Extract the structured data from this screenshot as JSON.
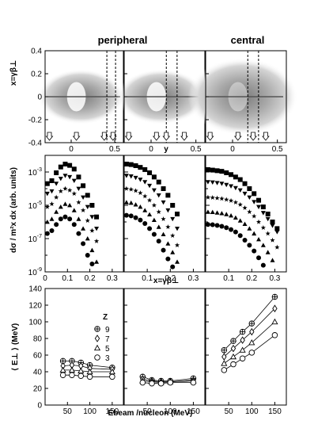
{
  "chart_data": [
    {
      "type": "heatmap",
      "column_titles": [
        "peripheral",
        "central"
      ],
      "ylabel": "x=γβ⊥",
      "xlabel": "y",
      "xlim": [
        -0.3,
        0.6
      ],
      "ylim": [
        -0.4,
        0.4
      ],
      "x_ticks": [
        "0",
        "0.5"
      ],
      "y_ticks": [
        "0.4",
        "0.2",
        "0",
        "-0.2",
        "-0.4"
      ],
      "panels": [
        {
          "dashed_lines_y": [
            0.41,
            0.51
          ],
          "arrows_y": [
            -0.25,
            0.06,
            0.38,
            0.48
          ]
        },
        {
          "dashed_lines_y": [
            0.17,
            0.29
          ],
          "arrows_y": [
            -0.25,
            0.06,
            0.17,
            0.37
          ]
        },
        {
          "dashed_lines_y": [
            0.17,
            0.29
          ],
          "arrows_y": [
            -0.25,
            0.06,
            0.23,
            0.37
          ]
        }
      ]
    },
    {
      "type": "scatter",
      "ylabel": "dσ / m²x dx  (arb. units)",
      "xlabel": "x=γβ⊥",
      "y_scale": "log",
      "xlim": [
        0,
        0.35
      ],
      "ylim": [
        1e-09,
        0.01
      ],
      "x_ticks": [
        "0",
        "0.1",
        "0.2",
        "0.3"
      ],
      "y_ticks": [
        "10^-3",
        "10^-5",
        "10^-7",
        "10^-9"
      ],
      "x": [
        0.01,
        0.03,
        0.05,
        0.07,
        0.09,
        0.11,
        0.13,
        0.15,
        0.17,
        0.19,
        0.21,
        0.23,
        0.25,
        0.27,
        0.29,
        0.31,
        0.33
      ],
      "panels": [
        {
          "series": [
            {
              "marker": "square",
              "values": [
                0.0002,
                0.0003,
                0.0009,
                0.002,
                0.003,
                0.0025,
                0.0015,
                0.0005,
                0.00015,
                4e-05,
                1e-05,
                2e-06,
                null,
                null,
                null,
                null,
                null
              ]
            },
            {
              "marker": "triangle-down",
              "values": [
                5e-05,
                7e-05,
                0.0002,
                0.0004,
                0.0006,
                0.0005,
                0.0003,
                0.0001,
                3e-05,
                8e-06,
                2e-06,
                4e-07,
                null,
                null,
                null,
                null,
                null
              ]
            },
            {
              "marker": "star",
              "values": [
                8e-06,
                1.2e-05,
                3e-05,
                7e-05,
                0.0001,
                8e-05,
                5e-05,
                1.5e-05,
                5e-06,
                1.2e-06,
                3e-07,
                7e-08,
                null,
                null,
                null,
                null,
                null
              ]
            },
            {
              "marker": "triangle-up",
              "values": [
                1e-06,
                1.5e-06,
                4e-06,
                8e-06,
                1.2e-05,
                1e-05,
                5e-06,
                1.5e-06,
                4e-07,
                1e-07,
                2e-08,
                4e-09,
                null,
                null,
                null,
                null,
                null
              ]
            },
            {
              "marker": "circle",
              "values": [
                2e-07,
                3e-07,
                7e-07,
                1.5e-06,
                2e-06,
                1.5e-06,
                7e-07,
                2e-07,
                5e-08,
                1e-08,
                3e-09,
                1e-09,
                null,
                null,
                null,
                null,
                null
              ]
            }
          ]
        },
        {
          "series": [
            {
              "marker": "square",
              "values": [
                0.003,
                0.0028,
                0.0024,
                0.0019,
                0.0014,
                0.0009,
                0.0005,
                0.00025,
                0.0001,
                4e-05,
                1e-05,
                3e-06,
                null,
                null,
                null,
                null,
                null
              ]
            },
            {
              "marker": "triangle-down",
              "values": [
                0.0006,
                0.00055,
                0.00045,
                0.00035,
                0.00025,
                0.00015,
                8e-05,
                4e-05,
                1.5e-05,
                5e-06,
                1.5e-06,
                4e-07,
                null,
                null,
                null,
                null,
                null
              ]
            },
            {
              "marker": "star",
              "values": [
                0.0001,
                9e-05,
                7.5e-05,
                5.5e-05,
                3.5e-05,
                2e-05,
                1e-05,
                4e-06,
                1.5e-06,
                5e-07,
                1.5e-07,
                4e-08,
                null,
                null,
                null,
                null,
                null
              ]
            },
            {
              "marker": "triangle-up",
              "values": [
                1.5e-05,
                1.4e-05,
                1.1e-05,
                8e-06,
                5e-06,
                2.8e-06,
                1.3e-06,
                5e-07,
                1.8e-07,
                5e-08,
                1.5e-08,
                4e-09,
                null,
                null,
                null,
                null,
                null
              ]
            },
            {
              "marker": "circle",
              "values": [
                2.5e-06,
                2.3e-06,
                1.8e-06,
                1.3e-06,
                8e-07,
                4e-07,
                1.8e-07,
                7e-08,
                2e-08,
                6e-09,
                2e-09,
                8e-10,
                null,
                null,
                null,
                null,
                null
              ]
            }
          ]
        },
        {
          "series": [
            {
              "marker": "square",
              "values": [
                0.0014,
                0.0013,
                0.0012,
                0.0011,
                0.0009,
                0.0007,
                0.0005,
                0.00035,
                0.0002,
                0.0001,
                5e-05,
                2e-05,
                8e-06,
                3e-06,
                1e-06,
                4e-07,
                null
              ]
            },
            {
              "marker": "triangle-down",
              "values": [
                0.00025,
                0.00024,
                0.00022,
                0.0002,
                0.00017,
                0.00014,
                0.00011,
                8e-05,
                5e-05,
                3e-05,
                1.6e-05,
                8e-06,
                3.5e-06,
                1.5e-06,
                6e-07,
                2.5e-07,
                null
              ]
            },
            {
              "marker": "star",
              "values": [
                3e-05,
                2.9e-05,
                2.7e-05,
                2.5e-05,
                2.2e-05,
                1.9e-05,
                1.5e-05,
                1.1e-05,
                7e-06,
                4e-06,
                2.2e-06,
                1e-06,
                4.5e-07,
                2e-07,
                8e-08,
                3e-08,
                null
              ]
            },
            {
              "marker": "triangle-up",
              "values": [
                4e-06,
                3.9e-06,
                3.6e-06,
                3.3e-06,
                2.9e-06,
                2.4e-06,
                1.8e-06,
                1.2e-06,
                7.5e-07,
                4e-07,
                2e-07,
                9e-08,
                4e-08,
                1.5e-08,
                5e-09,
                null,
                null
              ]
            },
            {
              "marker": "circle",
              "values": [
                7e-07,
                6.8e-07,
                6.2e-07,
                5.5e-07,
                4.5e-07,
                3.5e-07,
                2.5e-07,
                1.5e-07,
                8e-08,
                4e-08,
                1.8e-08,
                7e-09,
                2.5e-09,
                1e-09,
                null,
                null,
                null
              ]
            }
          ]
        }
      ]
    },
    {
      "type": "line",
      "ylabel": "⟨ E⊥ ⟩  (MeV)",
      "xlabel": "Ebeam /nucleon  (MeV)",
      "xlim": [
        0,
        175
      ],
      "ylim": [
        0,
        140
      ],
      "x_ticks": [
        "50",
        "100",
        "150"
      ],
      "y_ticks": [
        "0",
        "20",
        "40",
        "60",
        "80",
        "100",
        "120",
        "140"
      ],
      "legend_title": "Z",
      "legend": [
        "9",
        "7",
        "5",
        "3"
      ],
      "markers": [
        "cross",
        "diamond",
        "triangle-up",
        "circle"
      ],
      "x": [
        40,
        60,
        80,
        100,
        150
      ],
      "panels": [
        {
          "series": [
            {
              "name": "9",
              "values": [
                53,
                53,
                51,
                48,
                45
              ]
            },
            {
              "name": "7",
              "values": [
                47,
                48,
                47,
                44,
                43
              ]
            },
            {
              "name": "5",
              "values": [
                42,
                42,
                41,
                40,
                40
              ]
            },
            {
              "name": "3",
              "values": [
                36,
                36,
                35,
                34,
                34
              ]
            }
          ]
        },
        {
          "series": [
            {
              "name": "9",
              "values": [
                34,
                30,
                29,
                29,
                32
              ]
            },
            {
              "name": "7",
              "values": [
                31,
                29,
                28,
                28,
                30
              ]
            },
            {
              "name": "5",
              "values": [
                29,
                28,
                27,
                28,
                29
              ]
            },
            {
              "name": "3",
              "values": [
                27,
                26,
                26,
                27,
                27
              ]
            }
          ]
        },
        {
          "series": [
            {
              "name": "9",
              "values": [
                66,
                77,
                88,
                98,
                130
              ]
            },
            {
              "name": "7",
              "values": [
                58,
                68,
                78,
                88,
                116
              ]
            },
            {
              "name": "5",
              "values": [
                50,
                58,
                66,
                75,
                100
              ]
            },
            {
              "name": "3",
              "values": [
                42,
                49,
                56,
                63,
                84
              ]
            }
          ]
        }
      ]
    }
  ]
}
